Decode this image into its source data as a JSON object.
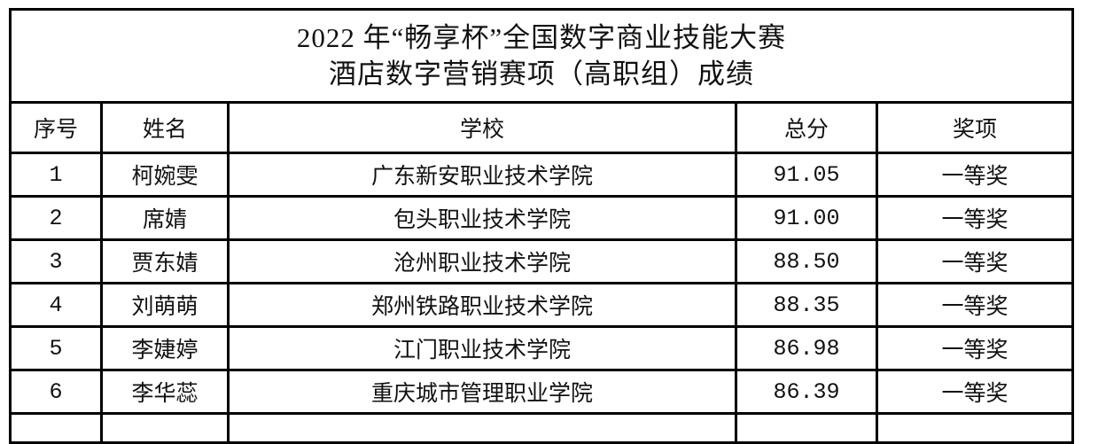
{
  "title": {
    "line1": "2022 年“畅享杯”全国数字商业技能大赛",
    "line2": "酒店数字营销赛项（高职组）成绩"
  },
  "headers": {
    "index": "序号",
    "name": "姓名",
    "school": "学校",
    "score": "总分",
    "award": "奖项"
  },
  "rows": [
    {
      "index": "1",
      "name": "柯婉雯",
      "school": "广东新安职业技术学院",
      "score": "91.05",
      "award": "一等奖"
    },
    {
      "index": "2",
      "name": "席婧",
      "school": "包头职业技术学院",
      "score": "91.00",
      "award": "一等奖"
    },
    {
      "index": "3",
      "name": "贾东婧",
      "school": "沧州职业技术学院",
      "score": "88.50",
      "award": "一等奖"
    },
    {
      "index": "4",
      "name": "刘萌萌",
      "school": "郑州铁路职业技术学院",
      "score": "88.35",
      "award": "一等奖"
    },
    {
      "index": "5",
      "name": "李婕婷",
      "school": "江门职业技术学院",
      "score": "86.98",
      "award": "一等奖"
    },
    {
      "index": "6",
      "name": "李华蕊",
      "school": "重庆城市管理职业学院",
      "score": "86.39",
      "award": "一等奖"
    }
  ]
}
